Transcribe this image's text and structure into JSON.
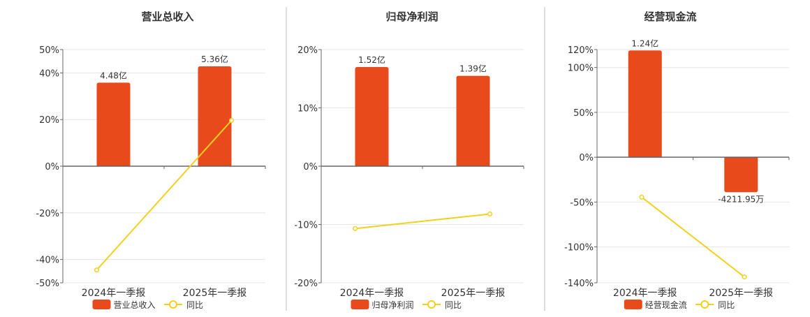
{
  "colors": {
    "bar": "#E84A1C",
    "line": "#F2D01E",
    "axis": "#666666",
    "grid": "#E6E6E6",
    "divider": "#BBBBBB",
    "text": "#333333"
  },
  "legend": {
    "yoy_label": "同比"
  },
  "chart_data": [
    {
      "type": "bar",
      "title": "营业总收入",
      "categories": [
        "2024年一季报",
        "2025年一季报"
      ],
      "series": [
        {
          "name": "营业总收入",
          "type": "bar",
          "values": [
            35.8,
            42.8
          ],
          "labels": [
            "4.48亿",
            "5.36亿"
          ]
        },
        {
          "name": "同比",
          "type": "line",
          "values": [
            -44.5,
            19.6
          ]
        }
      ],
      "ylim": [
        -50,
        50
      ],
      "yticks": [
        -50,
        -40,
        -20,
        0,
        20,
        40,
        50
      ],
      "ytick_labels": [
        "-50%",
        "-40%",
        "-20%",
        "0%",
        "20%",
        "40%",
        "50%"
      ]
    },
    {
      "type": "bar",
      "title": "归母净利润",
      "categories": [
        "2024年一季报",
        "2025年一季报"
      ],
      "series": [
        {
          "name": "归母净利润",
          "type": "bar",
          "values": [
            17.0,
            15.5
          ],
          "labels": [
            "1.52亿",
            "1.39亿"
          ]
        },
        {
          "name": "同比",
          "type": "line",
          "values": [
            -10.7,
            -8.2
          ]
        }
      ],
      "ylim": [
        -20,
        20
      ],
      "yticks": [
        -20,
        -10,
        0,
        10,
        20
      ],
      "ytick_labels": [
        "-20%",
        "-10%",
        "0%",
        "10%",
        "20%"
      ]
    },
    {
      "type": "bar",
      "title": "经营现金流",
      "categories": [
        "2024年一季报",
        "2025年一季报"
      ],
      "series": [
        {
          "name": "经营现金流",
          "type": "bar",
          "values": [
            119.0,
            -39.0
          ],
          "labels": [
            "1.24亿",
            "-4211.95万"
          ]
        },
        {
          "name": "同比",
          "type": "line",
          "values": [
            -44.5,
            -133.5
          ]
        }
      ],
      "ylim": [
        -140,
        120
      ],
      "yticks": [
        -140,
        -100,
        -50,
        0,
        50,
        100,
        120
      ],
      "ytick_labels": [
        "-140%",
        "-100%",
        "-50%",
        "0%",
        "50%",
        "100%",
        "120%"
      ]
    }
  ]
}
